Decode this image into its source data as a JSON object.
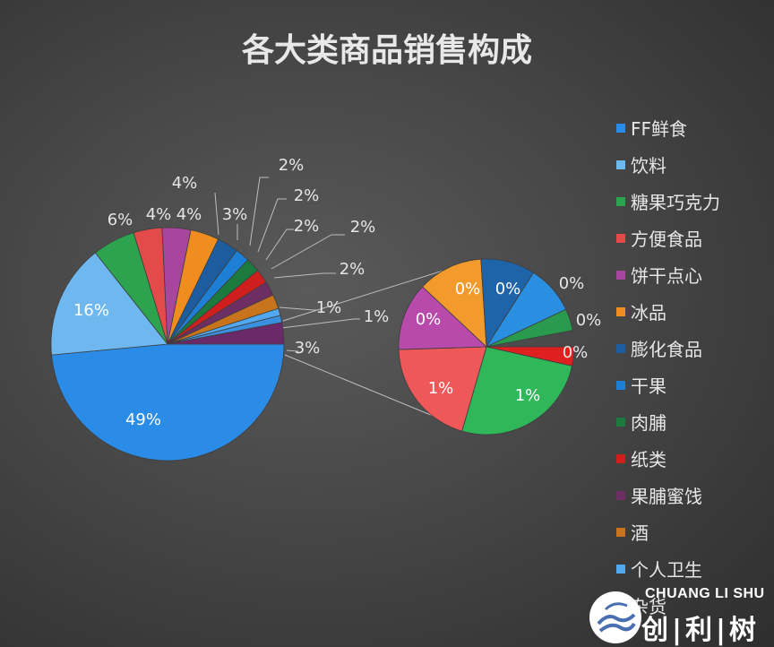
{
  "chart_data": {
    "type": "pie",
    "title": "各大类商品销售构成",
    "legend_position": "right",
    "legend": [
      "FF鲜食",
      "饮料",
      "糖果巧克力",
      "方便食品",
      "饼干点心",
      "冰品",
      "膨化食品",
      "干果",
      "肉脯",
      "纸类",
      "果脯蜜饯",
      "酒",
      "个人卫生",
      "杂货"
    ],
    "slices": [
      {
        "name": "FF鲜食",
        "value": 49,
        "label": "49%",
        "color": "#2b8ce8"
      },
      {
        "name": "饮料",
        "value": 16,
        "label": "16%",
        "color": "#6fb7ef"
      },
      {
        "name": "糖果巧克力",
        "value": 6,
        "label": "6%",
        "color": "#2ea34f"
      },
      {
        "name": "方便食品",
        "value": 4,
        "label": "4%",
        "color": "#e34b4b"
      },
      {
        "name": "饼干点心",
        "value": 4,
        "label": "4%",
        "color": "#a8459c"
      },
      {
        "name": "冰品",
        "value": 4,
        "label": "4%",
        "color": "#ef8e1f"
      },
      {
        "name": "膨化食品",
        "value": 3,
        "label": "3%",
        "color": "#1d5c9e"
      },
      {
        "name": "干果",
        "value": 2,
        "label": "2%",
        "color": "#1e7fd6"
      },
      {
        "name": "肉脯",
        "value": 2,
        "label": "2%",
        "color": "#1c7a3e"
      },
      {
        "name": "纸类",
        "value": 2,
        "label": "2%",
        "color": "#cf1e1e"
      },
      {
        "name": "果脯蜜饯",
        "value": 2,
        "label": "2%",
        "color": "#6d2f63"
      },
      {
        "name": "酒",
        "value": 2,
        "label": "2%",
        "color": "#c7741c"
      },
      {
        "name": "个人卫生",
        "value": 1,
        "label": "1%",
        "color": "#52a8ef"
      },
      {
        "name": "杂货",
        "value": 1,
        "label": "1%",
        "color": "#3a8fde"
      }
    ],
    "remainder_slice": {
      "value": 3,
      "label": "3%",
      "color": "#6a2a6a"
    },
    "detail_pie": {
      "slices": [
        {
          "value": 1,
          "label": "1%",
          "color": "#2fb75a"
        },
        {
          "value": 1,
          "label": "1%",
          "color": "#ee5858"
        },
        {
          "value": 0,
          "label": "0%",
          "color": "#b84aac"
        },
        {
          "value": 0,
          "label": "0%",
          "color": "#f39a2c"
        },
        {
          "value": 0,
          "label": "0%",
          "color": "#1f63a8"
        },
        {
          "value": 0,
          "label": "0%",
          "color": "#2a8fe0"
        },
        {
          "value": 0,
          "label": "0%",
          "color": "#2a9a4f"
        },
        {
          "value": 0,
          "label": "0%",
          "color": "#e02020"
        }
      ]
    },
    "legend_colors": [
      "#2b8ce8",
      "#6fb7ef",
      "#2ea34f",
      "#e34b4b",
      "#a8459c",
      "#ef8e1f",
      "#1d5c9e",
      "#1e7fd6",
      "#1c7a3e",
      "#cf1e1e",
      "#6d2f63",
      "#c7741c",
      "#52a8ef",
      "#3a8fde"
    ]
  },
  "watermark": {
    "en": "CHUANG LI SHU",
    "cn": "创|利|树"
  }
}
